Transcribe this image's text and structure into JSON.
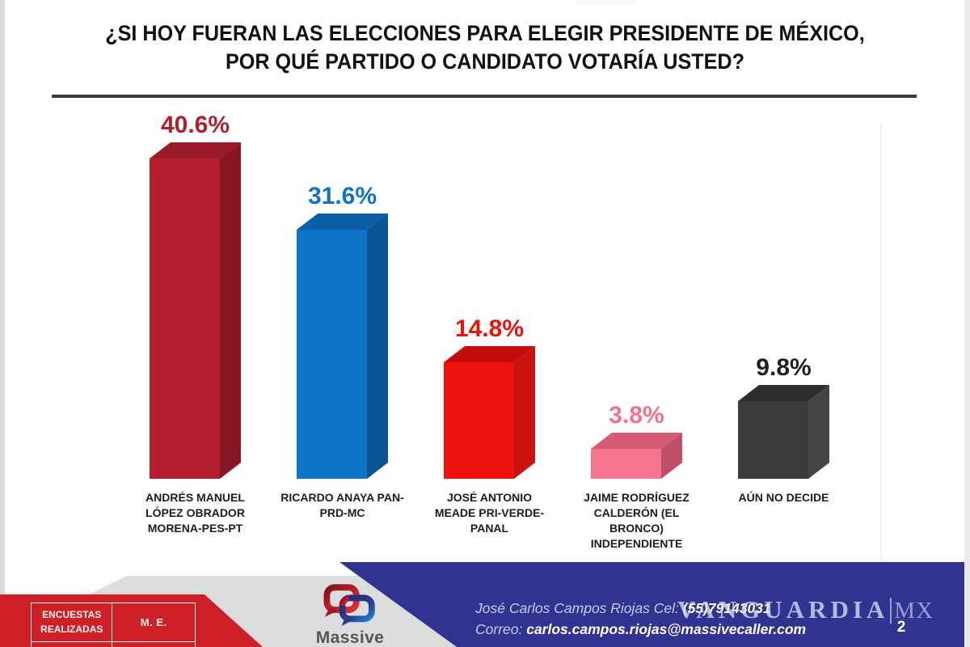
{
  "title": {
    "line1": "¿SI HOY FUERAN LAS ELECCIONES PARA ELEGIR PRESIDENTE DE MÉXICO,",
    "line2": "POR QUÉ PARTIDO O CANDIDATO VOTARÍA USTED?"
  },
  "chart_data": {
    "type": "bar",
    "style": "3d-columns, value labels above bars, no axes, no gridlines",
    "title": "¿SI HOY FUERAN LAS ELECCIONES PARA ELEGIR PRESIDENTE DE MÉXICO, POR QUÉ PARTIDO O CANDIDATO VOTARÍA USTED?",
    "categories": [
      "ANDRÉS MANUEL LÓPEZ OBRADOR MORENA-PES-PT",
      "RICARDO ANAYA PAN-PRD-MC",
      "JOSÉ ANTONIO MEADE PRI-VERDE-PANAL",
      "JAIME RODRÍGUEZ CALDERÓN (EL BRONCO) INDEPENDIENTE",
      "AÚN NO DECIDE"
    ],
    "values": [
      40.6,
      31.6,
      14.8,
      3.8,
      9.8
    ],
    "value_labels": [
      "40.6%",
      "31.6%",
      "14.8%",
      "3.8%",
      "9.8%"
    ],
    "xlabel": "",
    "ylabel": "",
    "ylim": [
      0,
      45
    ],
    "legend": "none",
    "bar_colors": [
      "#b41f30",
      "#0e72c6",
      "#ed1410",
      "#f5758f",
      "#3b3b3b"
    ]
  },
  "bars": [
    {
      "value_label": "40.6%",
      "category_lines": [
        "ANDRÉS MANUEL",
        "LÓPEZ OBRADOR",
        "MORENA-PES-PT"
      ],
      "colors": {
        "front": "#b41f30",
        "top": "#991a29",
        "side": "#871523",
        "value_text": "#b01f2e"
      }
    },
    {
      "value_label": "31.6%",
      "category_lines": [
        "RICARDO ANAYA PAN-",
        "PRD-MC"
      ],
      "colors": {
        "front": "#0e72c6",
        "top": "#0a5fa8",
        "side": "#0b5494",
        "value_text": "#1173c4"
      }
    },
    {
      "value_label": "14.8%",
      "category_lines": [
        "JOSÉ ANTONIO",
        "MEADE PRI-VERDE-",
        "PANAL"
      ],
      "colors": {
        "front": "#ed1410",
        "top": "#c20d0a",
        "side": "#cd1310",
        "value_text": "#ea1309"
      }
    },
    {
      "value_label": "3.8%",
      "category_lines": [
        "JAIME RODRÍGUEZ",
        "CALDERÓN (EL",
        "BRONCO)",
        "INDEPENDIENTE"
      ],
      "colors": {
        "front": "#f5758f",
        "top": "#d55b77",
        "side": "#c04f69",
        "value_text": "#f4718d"
      }
    },
    {
      "value_label": "9.8%",
      "category_lines": [
        "AÚN NO DECIDE"
      ],
      "colors": {
        "front": "#3b3b3b",
        "top": "#2e2e2e",
        "side": "#454545",
        "value_text": "#1f1f1f"
      }
    }
  ],
  "footer": {
    "table": {
      "cell1": "ENCUESTAS\nREALIZADAS",
      "cell2": "M. E.",
      "row2_cell1": "",
      "row2_cell2": ""
    },
    "logo_text": "Massive",
    "contact": {
      "line1_label": "José Carlos Campos Riojas Cel: ",
      "line1_value": "(55)79143031",
      "line2_label": "Correo: ",
      "line2_value": "carlos.campos.riojas@massivecaller.com"
    },
    "watermark": {
      "main": "VANGUARDIA",
      "suffix": "MX"
    },
    "page_number": "2",
    "colors": {
      "band_red": "#ce2127",
      "band_blue": "#303390",
      "band_gray": "#dcdddd"
    }
  }
}
